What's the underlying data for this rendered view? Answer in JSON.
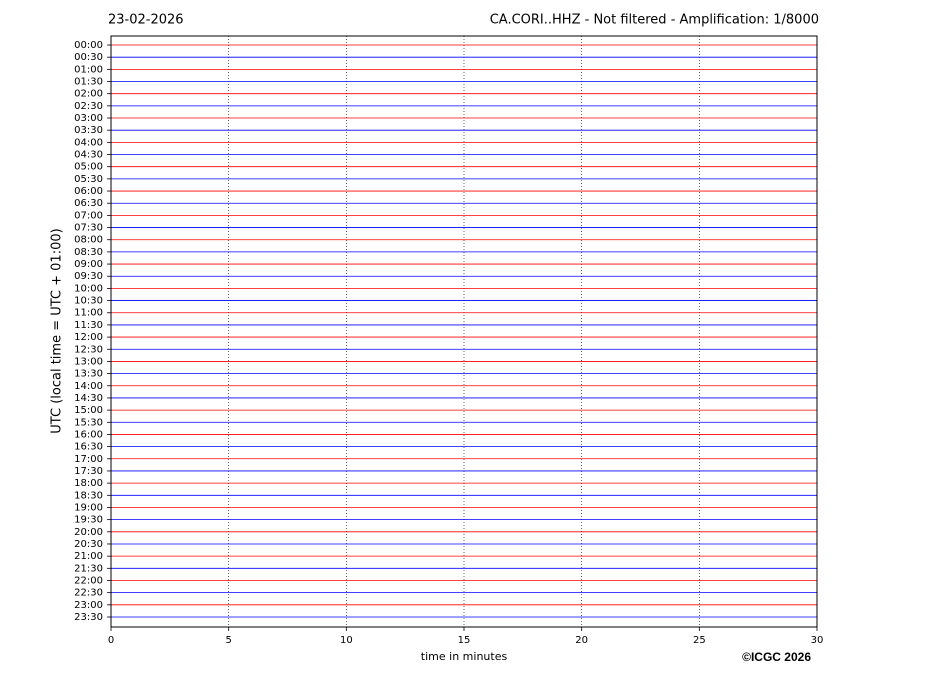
{
  "chart_data": {
    "type": "helicorder",
    "date": "23-02-2026",
    "title": "CA.CORI..HHZ - Not filtered - Amplification: 1/8000",
    "xlabel": "time in minutes",
    "ylabel": "UTC (local time = UTC + 01:00)",
    "credit": "©ICGC 2026",
    "categories": [
      "00:00",
      "00:30",
      "01:00",
      "01:30",
      "02:00",
      "02:30",
      "03:00",
      "03:30",
      "04:00",
      "04:30",
      "05:00",
      "05:30",
      "06:00",
      "06:30",
      "07:00",
      "07:30",
      "08:00",
      "08:30",
      "09:00",
      "09:30",
      "10:00",
      "10:30",
      "11:00",
      "11:30",
      "12:00",
      "12:30",
      "13:00",
      "13:30",
      "14:00",
      "14:30",
      "15:00",
      "15:30",
      "16:00",
      "16:30",
      "17:00",
      "17:30",
      "18:00",
      "18:30",
      "19:00",
      "19:30",
      "20:00",
      "20:30",
      "21:00",
      "21:30",
      "22:00",
      "22:30",
      "23:00",
      "23:30"
    ],
    "colors": [
      "#ff0000",
      "#0000ff"
    ],
    "xlim": [
      0,
      30
    ],
    "xticks": [
      0,
      5,
      10,
      15,
      20,
      25,
      30
    ],
    "grid": true
  }
}
